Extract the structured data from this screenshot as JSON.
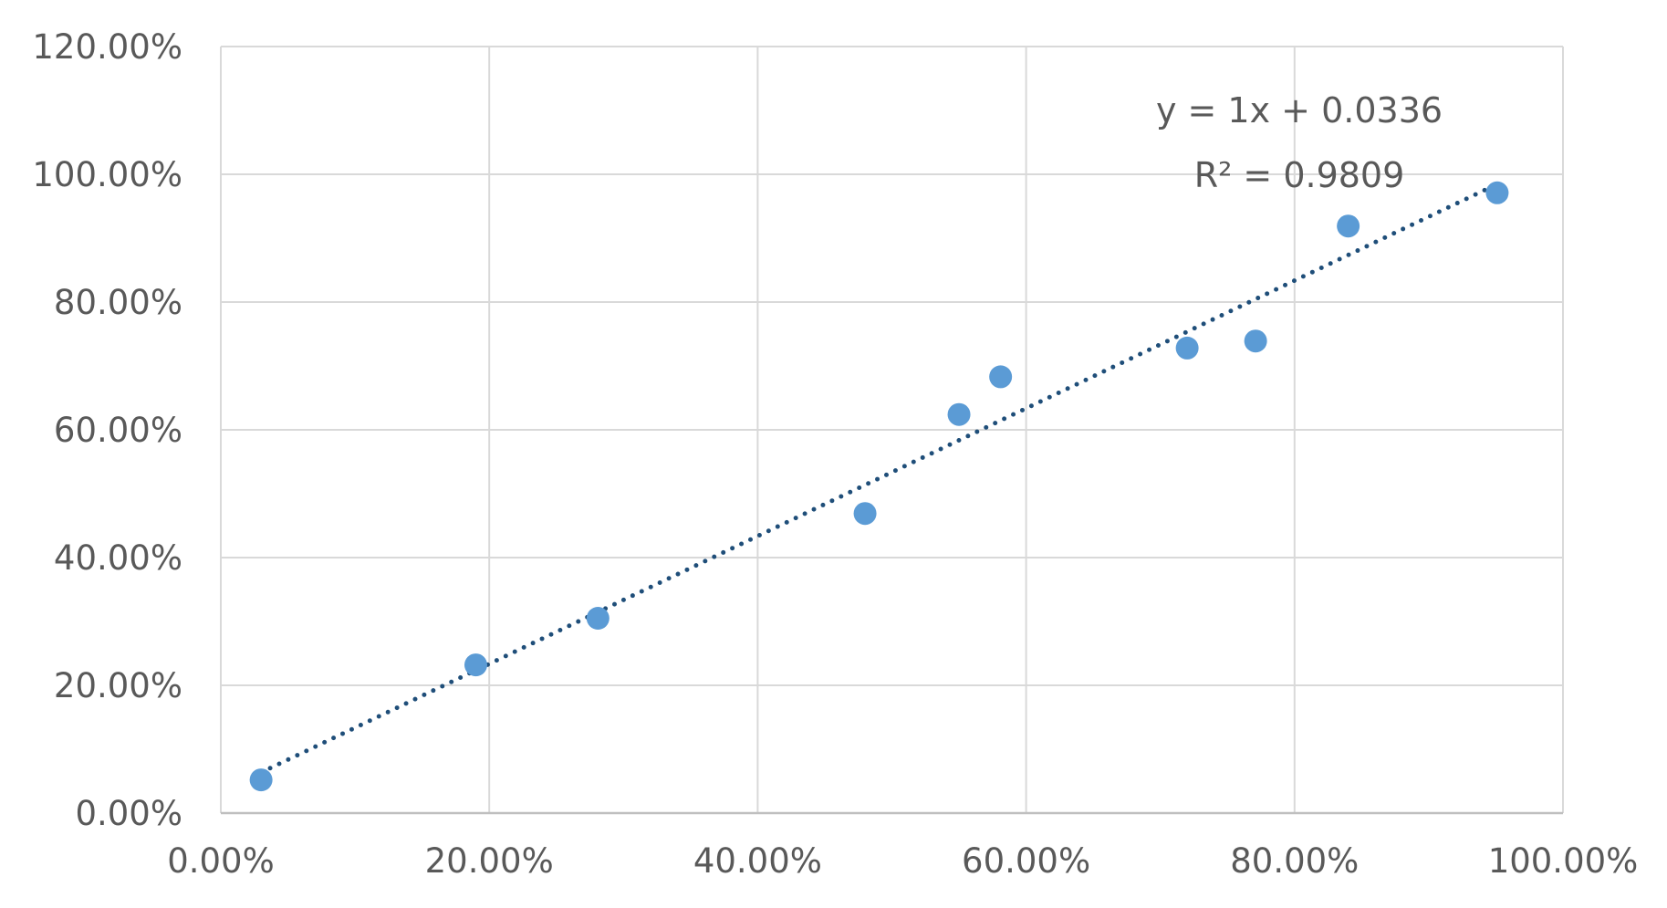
{
  "chart_data": {
    "type": "scatter",
    "title": "",
    "xlabel": "",
    "ylabel": "",
    "xlim": [
      0,
      1.0
    ],
    "ylim": [
      0,
      1.2
    ],
    "x_ticks": [
      0,
      0.2,
      0.4,
      0.6,
      0.8,
      1.0
    ],
    "y_ticks": [
      0,
      0.2,
      0.4,
      0.6,
      0.8,
      1.0,
      1.2
    ],
    "x_tick_labels": [
      "0.00%",
      "20.00%",
      "40.00%",
      "60.00%",
      "80.00%",
      "100.00%"
    ],
    "y_tick_labels": [
      "0.00%",
      "20.00%",
      "40.00%",
      "60.00%",
      "80.00%",
      "100.00%",
      "120.00%"
    ],
    "grid": true,
    "series": [
      {
        "x": [
          0.03,
          0.19,
          0.281,
          0.48,
          0.55,
          0.581,
          0.72,
          0.771,
          0.84,
          0.951
        ],
        "y": [
          0.052,
          0.232,
          0.305,
          0.469,
          0.624,
          0.683,
          0.728,
          0.739,
          0.919,
          0.971
        ],
        "color": "#5b9bd5"
      }
    ],
    "trendline": {
      "type": "linear",
      "slope": 1,
      "intercept": 0.0336,
      "x_range": [
        0.03,
        0.951
      ],
      "style": "dotted",
      "color": "#1f4e79",
      "equation_label": "y = 1x + 0.0336",
      "r2_label": "R² = 0.9809"
    }
  }
}
